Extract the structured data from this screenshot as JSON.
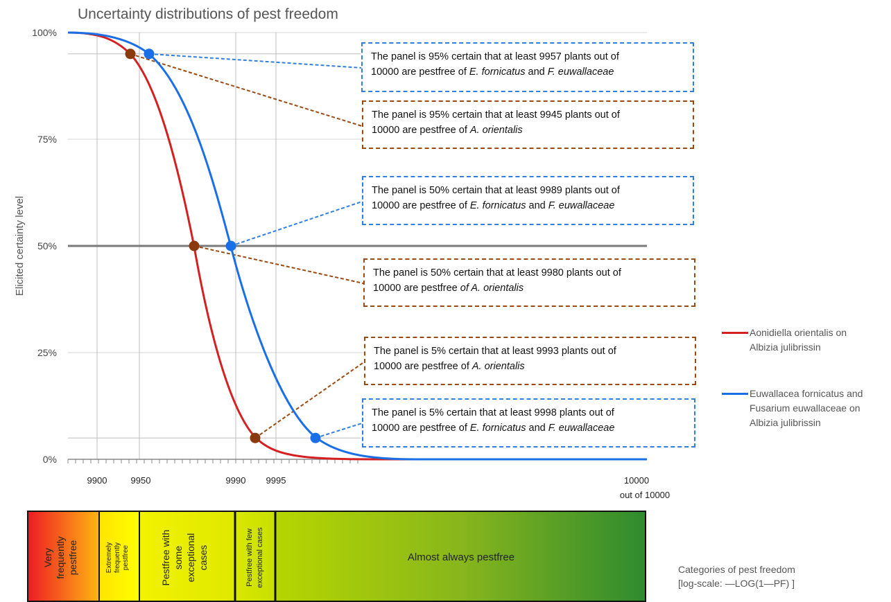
{
  "chart_data": {
    "type": "line",
    "title": "Uncertainty distributions of pest freedom",
    "ylabel": "Elicited certainty level",
    "yticks": [
      "100%",
      "75%",
      "50%",
      "25%",
      "0%"
    ],
    "xticks": [
      "9900",
      "9950",
      "9990",
      "9995",
      "10000"
    ],
    "xunit": "out of 10000",
    "xscale": "log-scale: -LOG(1-PF)",
    "ylim": [
      0,
      100
    ],
    "series": [
      {
        "name": "Aonidiella orientalis on Albizia julibrissin",
        "color": "#d42020",
        "key_points": [
          {
            "x": 9945,
            "y": 95
          },
          {
            "x": 9980,
            "y": 50
          },
          {
            "x": 9993,
            "y": 5
          }
        ]
      },
      {
        "name": "Euwallacea fornicatus and Fusarium euwallaceae on Albizia julibrissin",
        "color": "#1a6fe6",
        "key_points": [
          {
            "x": 9957,
            "y": 95
          },
          {
            "x": 9989,
            "y": 50
          },
          {
            "x": 9998,
            "y": 5
          }
        ]
      }
    ],
    "reference_line": {
      "y": 50
    },
    "legend_position": "right"
  },
  "callouts": [
    {
      "color": "blue",
      "text_a": "The panel is 95% certain that at least 9957 plants out of",
      "text_b": "10000 are pestfree of ",
      "sp1": "E. fornicatus",
      "mid": " and ",
      "sp2": "F. euwallaceae"
    },
    {
      "color": "brown",
      "text_a": "The panel is 95% certain that at least 9945 plants out of",
      "text_b": "10000 are pestfree of ",
      "sp1": "A. orientalis"
    },
    {
      "color": "blue",
      "text_a": "The panel is 50% certain that at least 9989 plants out of",
      "text_b": "10000 are pestfree of ",
      "sp1": "E. fornicatus",
      "mid": " and ",
      "sp2": "F. euwallaceae"
    },
    {
      "color": "brown",
      "text_a": "The panel is 50% certain that at least 9980 plants out of",
      "text_b": "10000 are pestfree ",
      "sp1": "of A. orientalis"
    },
    {
      "color": "brown",
      "text_a": "The panel is 5% certain that at least 9993 plants out of",
      "text_b": "10000 are pestfree of ",
      "sp1": "A. orientalis"
    },
    {
      "color": "blue",
      "text_a": "The panel is 5% certain that at least 9998 plants out of",
      "text_b": "10000 are pestfree of ",
      "sp1": "E. fornicatus",
      "mid": " and ",
      "sp2": "F. euwallaceae"
    }
  ],
  "legend": [
    {
      "line1": "Aonidiella orientalis on",
      "line2": "Albizia julibrissin",
      "line3": ""
    },
    {
      "line1": "Euwallacea fornicatus and",
      "line2": "Fusarium euwallaceae on",
      "line3": "Albizia julibrissin"
    }
  ],
  "categories": {
    "caption_line1": "Categories of pest freedom",
    "caption_line2": "[log-scale: —LOG(1—PF) ]",
    "items": [
      {
        "lines": [
          "Very",
          "frequently",
          "pestfree"
        ]
      },
      {
        "lines": [
          "Extremely",
          "frequently",
          "pestfree"
        ]
      },
      {
        "lines": [
          "Pestfree with",
          "some",
          "exceptional",
          "cases"
        ]
      },
      {
        "lines": [
          "Pestfree with few",
          "exceptional cases"
        ]
      },
      {
        "lines": [
          "Almost always pestfree"
        ]
      }
    ]
  }
}
